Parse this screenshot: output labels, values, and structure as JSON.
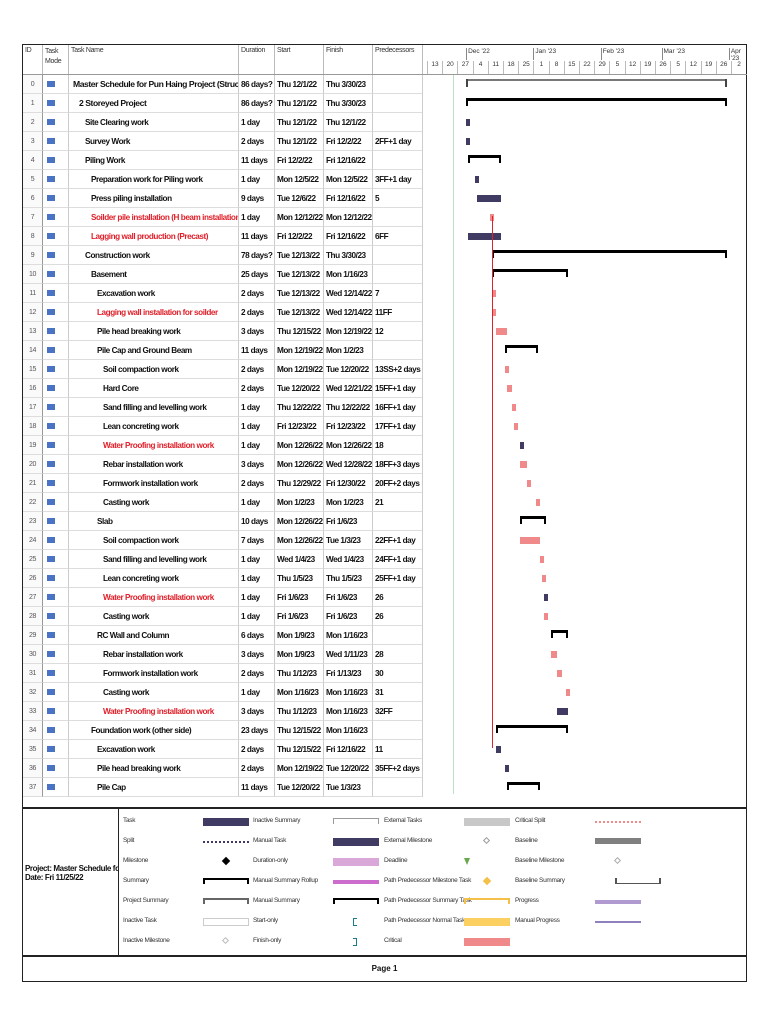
{
  "columns": {
    "id": "ID",
    "mode": "Task Mode",
    "name": "Task Name",
    "duration": "Duration",
    "start": "Start",
    "finish": "Finish",
    "predecessors": "Predecessors"
  },
  "timescale": {
    "months": [
      "Dec '22",
      "Jan '23",
      "Feb '23",
      "Mar '23",
      "Apr '23"
    ],
    "weeks": [
      "13",
      "20",
      "27",
      "4",
      "11",
      "18",
      "25",
      "1",
      "8",
      "15",
      "22",
      "29",
      "5",
      "12",
      "19",
      "26",
      "5",
      "12",
      "19",
      "26",
      "2"
    ]
  },
  "tasks": [
    {
      "id": "0",
      "name": "Master Schedule for Pun Haing Project (Structural)",
      "duration": "86 days?",
      "start": "Thu 12/1/22",
      "finish": "Thu 3/30/23",
      "pred": "",
      "level": 0,
      "style": "project-summary",
      "red": false
    },
    {
      "id": "1",
      "name": "2 Storeyed Project",
      "duration": "86 days?",
      "start": "Thu 12/1/22",
      "finish": "Thu 3/30/23",
      "pred": "",
      "level": 1,
      "style": "summary",
      "red": false
    },
    {
      "id": "2",
      "name": "Site Clearing work",
      "duration": "1 day",
      "start": "Thu 12/1/22",
      "finish": "Thu 12/1/22",
      "pred": "",
      "level": 2,
      "style": "task",
      "red": false
    },
    {
      "id": "3",
      "name": "Survey Work",
      "duration": "2 days",
      "start": "Thu 12/1/22",
      "finish": "Fri 12/2/22",
      "pred": "2FF+1 day",
      "level": 2,
      "style": "task",
      "red": false
    },
    {
      "id": "4",
      "name": "Piling Work",
      "duration": "11 days",
      "start": "Fri 12/2/22",
      "finish": "Fri 12/16/22",
      "pred": "",
      "level": 2,
      "style": "summary",
      "red": false
    },
    {
      "id": "5",
      "name": "Preparation work for Piling work",
      "duration": "1 day",
      "start": "Mon 12/5/22",
      "finish": "Mon 12/5/22",
      "pred": "3FF+1 day",
      "level": 3,
      "style": "task",
      "red": false
    },
    {
      "id": "6",
      "name": "Press piling installation",
      "duration": "9 days",
      "start": "Tue 12/6/22",
      "finish": "Fri 12/16/22",
      "pred": "5",
      "level": 3,
      "style": "task",
      "red": false
    },
    {
      "id": "7",
      "name": "Soilder pile installation (H beam installation)",
      "duration": "1 day",
      "start": "Mon 12/12/22",
      "finish": "Mon 12/12/22",
      "pred": "",
      "level": 3,
      "style": "critical",
      "red": true
    },
    {
      "id": "8",
      "name": "Lagging wall production (Precast)",
      "duration": "11 days",
      "start": "Fri 12/2/22",
      "finish": "Fri 12/16/22",
      "pred": "6FF",
      "level": 3,
      "style": "task",
      "red": true
    },
    {
      "id": "9",
      "name": "Construction work",
      "duration": "78 days?",
      "start": "Tue 12/13/22",
      "finish": "Thu 3/30/23",
      "pred": "",
      "level": 2,
      "style": "summary",
      "red": false
    },
    {
      "id": "10",
      "name": "Basement",
      "duration": "25 days",
      "start": "Tue 12/13/22",
      "finish": "Mon 1/16/23",
      "pred": "",
      "level": 3,
      "style": "summary",
      "red": false
    },
    {
      "id": "11",
      "name": "Excavation work",
      "duration": "2 days",
      "start": "Tue 12/13/22",
      "finish": "Wed 12/14/22",
      "pred": "7",
      "level": 4,
      "style": "critical",
      "red": false
    },
    {
      "id": "12",
      "name": "Lagging wall installation for soilder",
      "duration": "2 days",
      "start": "Tue 12/13/22",
      "finish": "Wed 12/14/22",
      "pred": "11FF",
      "level": 4,
      "style": "critical",
      "red": true
    },
    {
      "id": "13",
      "name": "Pile head breaking work",
      "duration": "3 days",
      "start": "Thu 12/15/22",
      "finish": "Mon 12/19/22",
      "pred": "12",
      "level": 4,
      "style": "critical",
      "red": false
    },
    {
      "id": "14",
      "name": "Pile Cap and Ground Beam",
      "duration": "11 days",
      "start": "Mon 12/19/22",
      "finish": "Mon 1/2/23",
      "pred": "",
      "level": 4,
      "style": "summary",
      "red": false
    },
    {
      "id": "15",
      "name": "Soil compaction work",
      "duration": "2 days",
      "start": "Mon 12/19/22",
      "finish": "Tue 12/20/22",
      "pred": "13SS+2 days",
      "level": 5,
      "style": "critical",
      "red": false
    },
    {
      "id": "16",
      "name": "Hard Core",
      "duration": "2 days",
      "start": "Tue 12/20/22",
      "finish": "Wed 12/21/22",
      "pred": "15FF+1 day",
      "level": 5,
      "style": "critical",
      "red": false
    },
    {
      "id": "17",
      "name": "Sand filling and levelling work",
      "duration": "1 day",
      "start": "Thu 12/22/22",
      "finish": "Thu 12/22/22",
      "pred": "16FF+1 day",
      "level": 5,
      "style": "critical",
      "red": false
    },
    {
      "id": "18",
      "name": "Lean concreting work",
      "duration": "1 day",
      "start": "Fri 12/23/22",
      "finish": "Fri 12/23/22",
      "pred": "17FF+1 day",
      "level": 5,
      "style": "critical",
      "red": false
    },
    {
      "id": "19",
      "name": "Water Proofing installation work",
      "duration": "1 day",
      "start": "Mon 12/26/22",
      "finish": "Mon 12/26/22",
      "pred": "18",
      "level": 5,
      "style": "task",
      "red": true
    },
    {
      "id": "20",
      "name": "Rebar installation work",
      "duration": "3 days",
      "start": "Mon 12/26/22",
      "finish": "Wed 12/28/22",
      "pred": "18FF+3 days",
      "level": 5,
      "style": "critical",
      "red": false
    },
    {
      "id": "21",
      "name": "Formwork installation work",
      "duration": "2 days",
      "start": "Thu 12/29/22",
      "finish": "Fri 12/30/22",
      "pred": "20FF+2 days",
      "level": 5,
      "style": "critical",
      "red": false
    },
    {
      "id": "22",
      "name": "Casting work",
      "duration": "1 day",
      "start": "Mon 1/2/23",
      "finish": "Mon 1/2/23",
      "pred": "21",
      "level": 5,
      "style": "critical",
      "red": false
    },
    {
      "id": "23",
      "name": "Slab",
      "duration": "10 days",
      "start": "Mon 12/26/22",
      "finish": "Fri 1/6/23",
      "pred": "",
      "level": 4,
      "style": "summary",
      "red": false
    },
    {
      "id": "24",
      "name": "Soil compaction work",
      "duration": "7 days",
      "start": "Mon 12/26/22",
      "finish": "Tue 1/3/23",
      "pred": "22FF+1 day",
      "level": 5,
      "style": "critical",
      "red": false
    },
    {
      "id": "25",
      "name": "Sand filling and levelling work",
      "duration": "1 day",
      "start": "Wed 1/4/23",
      "finish": "Wed 1/4/23",
      "pred": "24FF+1 day",
      "level": 5,
      "style": "critical",
      "red": false
    },
    {
      "id": "26",
      "name": "Lean concreting work",
      "duration": "1 day",
      "start": "Thu 1/5/23",
      "finish": "Thu 1/5/23",
      "pred": "25FF+1 day",
      "level": 5,
      "style": "critical",
      "red": false
    },
    {
      "id": "27",
      "name": "Water Proofing installation work",
      "duration": "1 day",
      "start": "Fri 1/6/23",
      "finish": "Fri 1/6/23",
      "pred": "26",
      "level": 5,
      "style": "task",
      "red": true
    },
    {
      "id": "28",
      "name": "Casting work",
      "duration": "1 day",
      "start": "Fri 1/6/23",
      "finish": "Fri 1/6/23",
      "pred": "26",
      "level": 5,
      "style": "critical",
      "red": false
    },
    {
      "id": "29",
      "name": "RC Wall and Column",
      "duration": "6 days",
      "start": "Mon 1/9/23",
      "finish": "Mon 1/16/23",
      "pred": "",
      "level": 4,
      "style": "summary",
      "red": false
    },
    {
      "id": "30",
      "name": "Rebar installation work",
      "duration": "3 days",
      "start": "Mon 1/9/23",
      "finish": "Wed 1/11/23",
      "pred": "28",
      "level": 5,
      "style": "critical",
      "red": false
    },
    {
      "id": "31",
      "name": "Formwork installation work",
      "duration": "2 days",
      "start": "Thu 1/12/23",
      "finish": "Fri 1/13/23",
      "pred": "30",
      "level": 5,
      "style": "critical",
      "red": false
    },
    {
      "id": "32",
      "name": "Casting work",
      "duration": "1 day",
      "start": "Mon 1/16/23",
      "finish": "Mon 1/16/23",
      "pred": "31",
      "level": 5,
      "style": "critical",
      "red": false
    },
    {
      "id": "33",
      "name": "Water Proofing installation work",
      "duration": "3 days",
      "start": "Thu 1/12/23",
      "finish": "Mon 1/16/23",
      "pred": "32FF",
      "level": 5,
      "style": "task",
      "red": true
    },
    {
      "id": "34",
      "name": "Foundation work (other side)",
      "duration": "23 days",
      "start": "Thu 12/15/22",
      "finish": "Mon 1/16/23",
      "pred": "",
      "level": 3,
      "style": "summary",
      "red": false
    },
    {
      "id": "35",
      "name": "Excavation work",
      "duration": "2 days",
      "start": "Thu 12/15/22",
      "finish": "Fri 12/16/22",
      "pred": "11",
      "level": 4,
      "style": "task",
      "red": false
    },
    {
      "id": "36",
      "name": "Pile head breaking work",
      "duration": "2 days",
      "start": "Mon 12/19/22",
      "finish": "Tue 12/20/22",
      "pred": "35FF+2 days",
      "level": 4,
      "style": "task",
      "red": false
    },
    {
      "id": "37",
      "name": "Pile Cap",
      "duration": "11 days",
      "start": "Tue 12/20/22",
      "finish": "Tue 1/3/23",
      "pred": "",
      "level": 4,
      "style": "summary",
      "red": false
    }
  ],
  "legend": {
    "project": "Project: Master Schedule for Pu",
    "date": "Date: Fri 11/25/22",
    "items": [
      [
        "Task",
        "task"
      ],
      [
        "Split",
        "split"
      ],
      [
        "Milestone",
        "milestone"
      ],
      [
        "Summary",
        "summary"
      ],
      [
        "Project Summary",
        "project-summary"
      ],
      [
        "Inactive Task",
        "inactive-task"
      ],
      [
        "Inactive Milestone",
        "inactive-milestone"
      ],
      [
        "Inactive Summary",
        "inactive-summary"
      ],
      [
        "Manual Task",
        "manual-task"
      ],
      [
        "Duration-only",
        "duration-only"
      ],
      [
        "Manual Summary Rollup",
        "manual-summary-rollup"
      ],
      [
        "Manual Summary",
        "manual-summary"
      ],
      [
        "Start-only",
        "start-only"
      ],
      [
        "Finish-only",
        "finish-only"
      ],
      [
        "External Tasks",
        "external-tasks"
      ],
      [
        "External Milestone",
        "external-milestone"
      ],
      [
        "Deadline",
        "deadline"
      ],
      [
        "Path Predecessor Milestone Task",
        "path-milestone"
      ],
      [
        "Path Predecessor Summary Task",
        "path-summary"
      ],
      [
        "Path Predecessor Normal Task",
        "path-normal"
      ],
      [
        "Critical",
        "critical"
      ],
      [
        "Critical Split",
        "critical-split"
      ],
      [
        "Baseline",
        "baseline"
      ],
      [
        "Baseline Milestone",
        "baseline-milestone"
      ],
      [
        "Baseline Summary",
        "baseline-summary"
      ],
      [
        "Progress",
        "progress"
      ],
      [
        "Manual Progress",
        "manual-progress"
      ]
    ]
  },
  "colors": {
    "task": "#3f3b63",
    "critical": "#f08a8a",
    "critical_text": "#e0202a",
    "mode_icon": "#4a73c4"
  },
  "footer": {
    "page": "Page 1"
  }
}
